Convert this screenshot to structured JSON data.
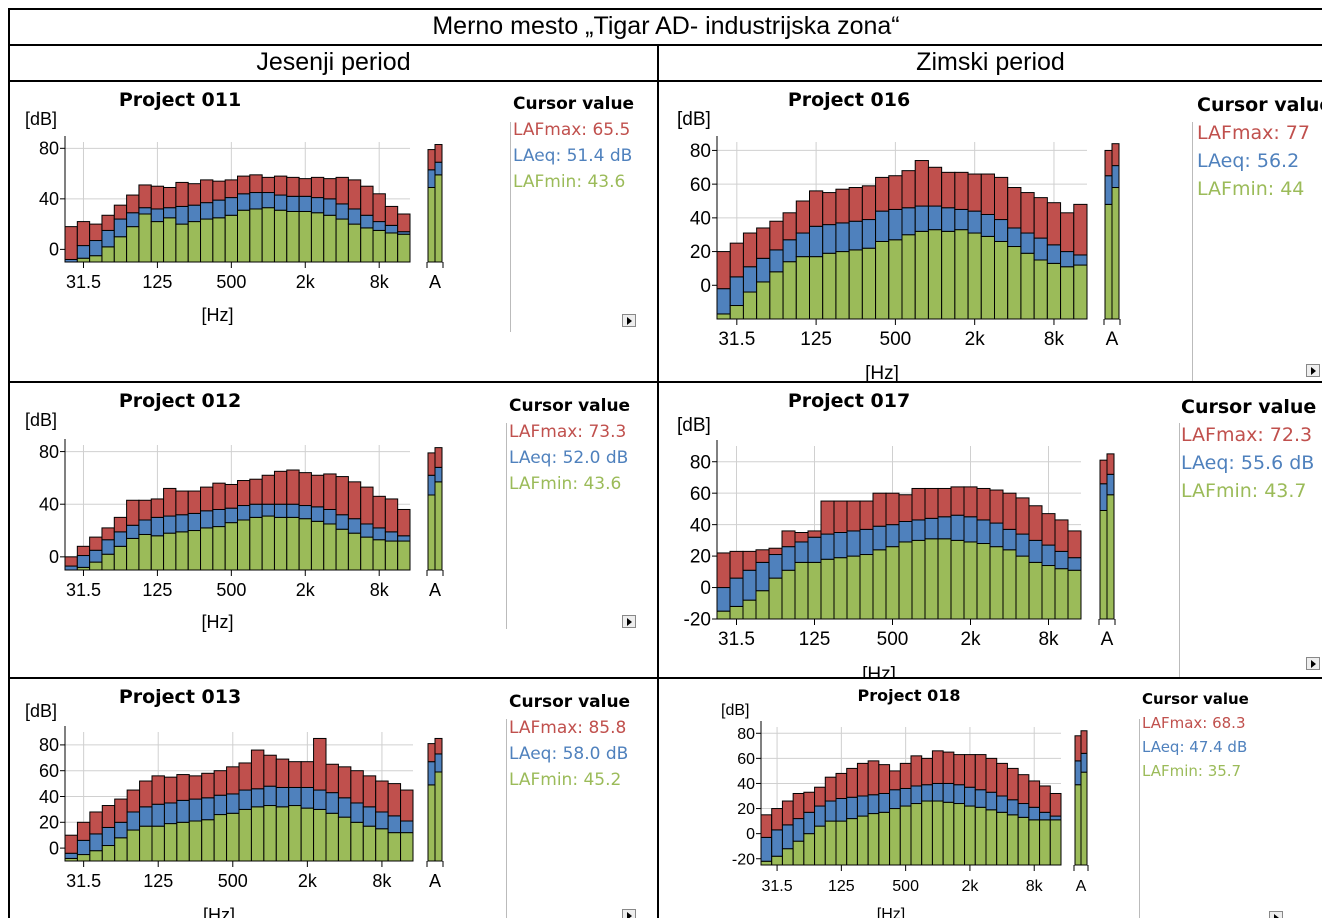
{
  "title": "Merno mesto „Tigar AD- industrijska zona“",
  "columns": [
    "Jesenji period",
    "Zimski period"
  ],
  "legend": {
    "cursor_header": "Cursor value",
    "colors": {
      "max": "#c0504d",
      "eq": "#4f81bd",
      "min": "#9bbb59"
    }
  },
  "panels": [
    {
      "title": "Project 011",
      "max_label": "LAFmax: 65.5",
      "eq_label": "LAeq: 51.4 dB",
      "min_label": "LAFmin: 43.6"
    },
    {
      "title": "Project 016",
      "max_label": "LAFmax: 77",
      "eq_label": "LAeq: 56.2",
      "min_label": "LAFmin: 44"
    },
    {
      "title": "Project 012",
      "max_label": "LAFmax: 73.3",
      "eq_label": "LAeq: 52.0 dB",
      "min_label": "LAFmin: 43.6"
    },
    {
      "title": "Project 017",
      "max_label": "LAFmax: 72.3",
      "eq_label": "LAeq: 55.6 dB",
      "min_label": "LAFmin: 43.7"
    },
    {
      "title": "Project 013",
      "max_label": "LAFmax: 85.8",
      "eq_label": "LAeq: 58.0 dB",
      "min_label": "LAFmin: 45.2"
    },
    {
      "title": "Project 018",
      "max_label": "LAFmax: 68.3",
      "eq_label": "LAeq: 47.4 dB",
      "min_label": "LAFmin: 35.7"
    }
  ],
  "chart_data": [
    {
      "type": "bar",
      "title": "Project 011",
      "ylabel": "[dB]",
      "xlabel": "[Hz]",
      "ylim": [
        -10,
        85
      ],
      "yticks": [
        0,
        40,
        80
      ],
      "x_ticks": [
        "31.5",
        "125",
        "500",
        "2k",
        "8k",
        "A"
      ],
      "series": [
        {
          "name": "LAFmax",
          "values": [
            18,
            22,
            20,
            27,
            35,
            43,
            51,
            50,
            49,
            53,
            52,
            55,
            54,
            55,
            58,
            59,
            57,
            58,
            57,
            56,
            57,
            56,
            57,
            55,
            50,
            44,
            34,
            28
          ]
        },
        {
          "name": "LAeq",
          "values": [
            -8,
            3,
            7,
            15,
            24,
            29,
            33,
            32,
            33,
            34,
            35,
            37,
            39,
            41,
            44,
            45,
            45,
            43,
            42,
            42,
            41,
            40,
            36,
            32,
            27,
            22,
            19,
            14
          ]
        },
        {
          "name": "LAFmin",
          "values": [
            -10,
            -7,
            -5,
            2,
            10,
            18,
            28,
            22,
            25,
            20,
            22,
            24,
            25,
            27,
            31,
            32,
            33,
            31,
            30,
            30,
            29,
            27,
            24,
            20,
            17,
            15,
            13,
            12
          ]
        }
      ],
      "broadband": {
        "max": 83,
        "eq": 67,
        "min": 57
      }
    },
    {
      "type": "bar",
      "title": "Project 016",
      "ylabel": "[dB]",
      "xlabel": "[Hz]",
      "ylim": [
        -20,
        85
      ],
      "yticks": [
        0,
        20,
        40,
        60,
        80
      ],
      "x_ticks": [
        "31.5",
        "125",
        "500",
        "2k",
        "8k",
        "A"
      ],
      "series": [
        {
          "name": "LAFmax",
          "values": [
            20,
            25,
            31,
            34,
            38,
            43,
            50,
            56,
            55,
            57,
            58,
            59,
            64,
            65,
            68,
            74,
            70,
            67,
            67,
            66,
            66,
            64,
            58,
            55,
            52,
            49,
            43,
            48
          ]
        },
        {
          "name": "LAeq",
          "values": [
            -2,
            5,
            11,
            16,
            21,
            27,
            31,
            35,
            36,
            37,
            38,
            39,
            44,
            45,
            46,
            47,
            47,
            46,
            45,
            44,
            42,
            39,
            34,
            31,
            28,
            24,
            20,
            18
          ]
        },
        {
          "name": "LAFmin",
          "values": [
            -17,
            -12,
            -4,
            2,
            8,
            14,
            17,
            17,
            19,
            20,
            21,
            22,
            26,
            27,
            30,
            32,
            33,
            32,
            33,
            31,
            29,
            26,
            23,
            19,
            15,
            13,
            11,
            12
          ]
        }
      ],
      "broadband": {
        "max": 84,
        "eq": 69,
        "min": 56
      }
    },
    {
      "type": "bar",
      "title": "Project 012",
      "ylabel": "[dB]",
      "xlabel": "[Hz]",
      "ylim": [
        -10,
        85
      ],
      "yticks": [
        0,
        40,
        80
      ],
      "x_ticks": [
        "31.5",
        "125",
        "500",
        "2k",
        "8k",
        "A"
      ],
      "series": [
        {
          "name": "LAFmax",
          "values": [
            0,
            8,
            15,
            22,
            30,
            43,
            43,
            44,
            52,
            50,
            50,
            53,
            56,
            55,
            58,
            59,
            62,
            65,
            66,
            64,
            62,
            63,
            61,
            57,
            53,
            46,
            44,
            36
          ]
        },
        {
          "name": "LAeq",
          "values": [
            -7,
            1,
            5,
            13,
            19,
            24,
            28,
            30,
            31,
            32,
            33,
            35,
            36,
            37,
            39,
            40,
            40,
            40,
            40,
            39,
            38,
            36,
            32,
            29,
            25,
            22,
            19,
            16
          ]
        },
        {
          "name": "LAFmin",
          "values": [
            -10,
            -8,
            -4,
            2,
            8,
            14,
            17,
            16,
            18,
            19,
            20,
            22,
            23,
            26,
            28,
            30,
            31,
            30,
            30,
            29,
            27,
            25,
            21,
            18,
            15,
            13,
            12,
            12
          ]
        }
      ],
      "broadband": {
        "max": 83,
        "eq": 66,
        "min": 55
      }
    },
    {
      "type": "bar",
      "title": "Project 017",
      "ylabel": "[dB]",
      "xlabel": "[Hz]",
      "ylim": [
        -20,
        90
      ],
      "yticks": [
        -20,
        0,
        20,
        40,
        60,
        80
      ],
      "x_ticks": [
        "31.5",
        "125",
        "500",
        "2k",
        "8k",
        "A"
      ],
      "series": [
        {
          "name": "LAFmax",
          "values": [
            22,
            23,
            23,
            24,
            25,
            36,
            35,
            36,
            55,
            55,
            55,
            55,
            60,
            60,
            59,
            63,
            63,
            63,
            64,
            64,
            63,
            62,
            60,
            57,
            52,
            47,
            43,
            36
          ]
        },
        {
          "name": "LAeq",
          "values": [
            0,
            6,
            11,
            16,
            21,
            26,
            29,
            32,
            34,
            35,
            36,
            37,
            39,
            40,
            42,
            43,
            44,
            45,
            46,
            45,
            43,
            41,
            37,
            34,
            30,
            27,
            23,
            19
          ]
        },
        {
          "name": "LAFmin",
          "values": [
            -15,
            -12,
            -8,
            -2,
            6,
            11,
            16,
            16,
            18,
            19,
            20,
            21,
            24,
            26,
            29,
            30,
            31,
            31,
            30,
            29,
            28,
            26,
            24,
            20,
            16,
            14,
            12,
            11
          ]
        }
      ],
      "broadband": {
        "max": 85,
        "eq": 70,
        "min": 57
      }
    },
    {
      "type": "bar",
      "title": "Project 013",
      "ylabel": "[dB]",
      "xlabel": "[Hz]",
      "ylim": [
        -10,
        90
      ],
      "yticks": [
        0,
        20,
        40,
        60,
        80
      ],
      "x_ticks": [
        "31.5",
        "125",
        "500",
        "2k",
        "8k",
        "A"
      ],
      "series": [
        {
          "name": "LAFmax",
          "values": [
            10,
            20,
            28,
            33,
            38,
            45,
            52,
            56,
            55,
            57,
            56,
            58,
            60,
            63,
            66,
            76,
            72,
            69,
            67,
            67,
            85,
            65,
            63,
            60,
            56,
            52,
            50,
            45
          ]
        },
        {
          "name": "LAeq",
          "values": [
            -4,
            6,
            11,
            16,
            20,
            28,
            32,
            34,
            35,
            37,
            38,
            39,
            41,
            42,
            45,
            46,
            48,
            47,
            47,
            47,
            45,
            43,
            39,
            35,
            32,
            28,
            25,
            21
          ]
        },
        {
          "name": "LAFmin",
          "values": [
            -8,
            -5,
            -2,
            2,
            8,
            14,
            17,
            17,
            19,
            20,
            21,
            22,
            26,
            27,
            30,
            32,
            33,
            32,
            33,
            31,
            30,
            27,
            24,
            20,
            17,
            15,
            12,
            12
          ]
        }
      ],
      "broadband": {
        "max": 85,
        "eq": 71,
        "min": 57
      }
    },
    {
      "type": "bar",
      "title": "Project 018",
      "ylabel": "[dB]",
      "xlabel": "[Hz]",
      "ylim": [
        -25,
        85
      ],
      "yticks": [
        -20,
        0,
        20,
        40,
        60,
        80
      ],
      "x_ticks": [
        "31.5",
        "125",
        "500",
        "2k",
        "8k",
        "A"
      ],
      "series": [
        {
          "name": "LAFmax",
          "values": [
            15,
            20,
            26,
            32,
            33,
            37,
            45,
            48,
            52,
            56,
            58,
            55,
            50,
            56,
            62,
            60,
            66,
            65,
            63,
            63,
            63,
            60,
            56,
            52,
            47,
            42,
            38,
            32
          ]
        },
        {
          "name": "LAeq",
          "values": [
            -3,
            3,
            7,
            12,
            17,
            22,
            26,
            28,
            29,
            30,
            31,
            32,
            35,
            36,
            38,
            39,
            40,
            40,
            39,
            37,
            35,
            33,
            30,
            27,
            24,
            21,
            17,
            14
          ]
        },
        {
          "name": "LAFmin",
          "values": [
            -22,
            -18,
            -12,
            -6,
            0,
            6,
            10,
            10,
            12,
            14,
            16,
            17,
            20,
            22,
            24,
            26,
            26,
            25,
            24,
            22,
            21,
            19,
            17,
            15,
            13,
            11,
            11,
            11
          ]
        }
      ],
      "broadband": {
        "max": 82,
        "eq": 62,
        "min": 47
      }
    }
  ]
}
